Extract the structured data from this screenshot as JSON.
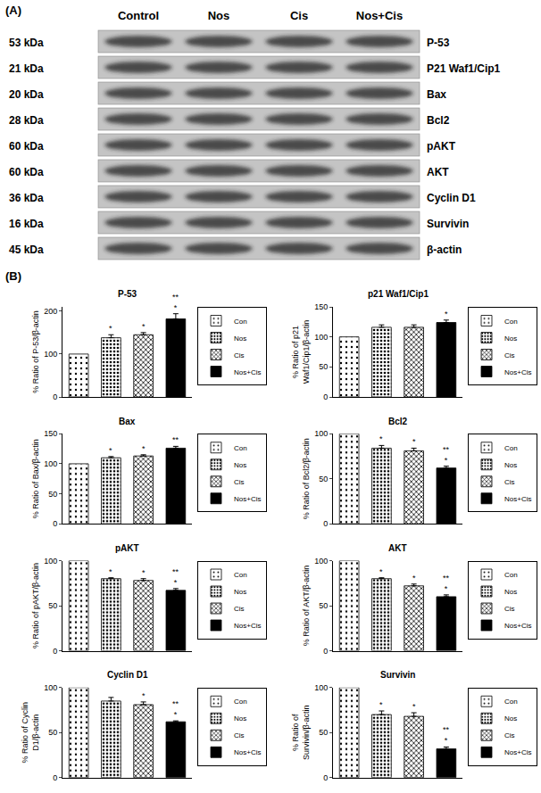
{
  "panel_a": {
    "label": "(A)",
    "columns": [
      "Control",
      "Nos",
      "Cis",
      "Nos+Cis"
    ],
    "rows": [
      {
        "size": "53 kDa",
        "protein": "P-53"
      },
      {
        "size": "21 kDa",
        "protein": "P21 Waf1/Cip1"
      },
      {
        "size": "20 kDa",
        "protein": "Bax"
      },
      {
        "size": "28 kDa",
        "protein": "Bcl2"
      },
      {
        "size": "60 kDa",
        "protein": "pAKT"
      },
      {
        "size": "60 kDa",
        "protein": "AKT"
      },
      {
        "size": "36 kDa",
        "protein": "Cyclin D1"
      },
      {
        "size": "16 kDa",
        "protein": "Survivin"
      },
      {
        "size": "45 kDa",
        "protein": "β-actin"
      }
    ]
  },
  "panel_b": {
    "label": "(B)"
  },
  "chart_data": [
    {
      "type": "bar",
      "title": "P-53",
      "y_label": "% Ratio of P-53/β-actin",
      "categories": [
        "Con",
        "Nos",
        "Cis",
        "Nos+Cis"
      ],
      "values": [
        100,
        138,
        145,
        182
      ],
      "errors": [
        null,
        7,
        5,
        12
      ],
      "significance": [
        null,
        [
          "*"
        ],
        [
          "*"
        ],
        [
          "**",
          "*"
        ]
      ],
      "colors": [
        "#ffffff",
        "#ffffff",
        "#ffffff",
        "#000000"
      ],
      "ylim": [
        0,
        210
      ],
      "yticks": [
        0,
        100,
        200
      ],
      "legend": "right",
      "tick_labels": "y"
    },
    {
      "type": "bar",
      "title": "p21 Waf1/Cip1",
      "y_label": "% Ratio of p21\nWaf1/Cip1/β-actin",
      "categories": [
        "Con",
        "Nos",
        "Cis",
        "Nos+Cis"
      ],
      "values": [
        100,
        116,
        116,
        124
      ],
      "errors": [
        null,
        4,
        4,
        4
      ],
      "significance": [
        null,
        null,
        null,
        [
          "*"
        ]
      ],
      "colors": [
        "#ffffff",
        "#ffffff",
        "#ffffff",
        "#000000"
      ],
      "ylim": [
        0,
        150
      ],
      "yticks": [
        0,
        50,
        100,
        150
      ],
      "legend": "right",
      "tick_labels": "y"
    },
    {
      "type": "bar",
      "title": "Bax",
      "y_label": "% Ratio of Bax/β-actin",
      "categories": [
        "Con",
        "Nos",
        "Cis",
        "Nos+Cis"
      ],
      "values": [
        100,
        110,
        113,
        126
      ],
      "errors": [
        null,
        2,
        2,
        3
      ],
      "significance": [
        null,
        [
          "*"
        ],
        [
          "*"
        ],
        [
          "**"
        ]
      ],
      "colors": [
        "#ffffff",
        "#ffffff",
        "#ffffff",
        "#000000"
      ],
      "ylim": [
        0,
        150
      ],
      "yticks": [
        0,
        50,
        100,
        150
      ],
      "legend": "right",
      "tick_labels": "y"
    },
    {
      "type": "bar",
      "title": "Bcl2",
      "y_label": "% Ratio of Bcl2/β-actin",
      "categories": [
        "Con",
        "Nos",
        "Cis",
        "Nos+Cis"
      ],
      "values": [
        100,
        84,
        81,
        62
      ],
      "errors": [
        null,
        3,
        3,
        2
      ],
      "significance": [
        null,
        [
          "*"
        ],
        [
          "*"
        ],
        [
          "**",
          "*"
        ]
      ],
      "colors": [
        "#ffffff",
        "#ffffff",
        "#ffffff",
        "#000000"
      ],
      "ylim": [
        0,
        100
      ],
      "yticks": [
        0,
        50,
        100
      ],
      "legend": "right",
      "tick_labels": "y"
    },
    {
      "type": "bar",
      "title": "pAKT",
      "y_label": "% Ratio of pAKT/β-actin",
      "categories": [
        "Con",
        "Nos",
        "Cis",
        "Nos+Cis"
      ],
      "values": [
        100,
        80,
        78,
        67
      ],
      "errors": [
        null,
        1,
        2,
        2
      ],
      "significance": [
        null,
        [
          "*"
        ],
        [
          "*"
        ],
        [
          "**",
          "*"
        ]
      ],
      "colors": [
        "#ffffff",
        "#ffffff",
        "#ffffff",
        "#000000"
      ],
      "ylim": [
        0,
        100
      ],
      "yticks": [
        0,
        50,
        100
      ],
      "legend": "right",
      "tick_labels": "y"
    },
    {
      "type": "bar",
      "title": "AKT",
      "y_label": "% Ratio of AKT/β-actin",
      "categories": [
        "Con",
        "Nos",
        "Cis",
        "Nos+Cis"
      ],
      "values": [
        100,
        80,
        72,
        60
      ],
      "errors": [
        null,
        1,
        2,
        2
      ],
      "significance": [
        null,
        [
          "*"
        ],
        [
          "*"
        ],
        [
          "**",
          "*"
        ]
      ],
      "colors": [
        "#ffffff",
        "#ffffff",
        "#ffffff",
        "#000000"
      ],
      "ylim": [
        0,
        100
      ],
      "yticks": [
        0,
        50,
        100
      ],
      "legend": "right",
      "tick_labels": "y"
    },
    {
      "type": "bar",
      "title": "Cyclin D1",
      "y_label": "% Ratio of Cyclin\nD1/β-actin",
      "categories": [
        "Con",
        "Nos",
        "Cis",
        "Nos+Cis"
      ],
      "values": [
        100,
        85,
        81,
        62
      ],
      "errors": [
        null,
        4,
        3,
        1
      ],
      "significance": [
        null,
        null,
        [
          "*"
        ],
        [
          "**",
          "*"
        ]
      ],
      "colors": [
        "#ffffff",
        "#ffffff",
        "#ffffff",
        "#000000"
      ],
      "ylim": [
        0,
        100
      ],
      "yticks": [
        0,
        50,
        100
      ],
      "legend": "right",
      "tick_labels": "y"
    },
    {
      "type": "bar",
      "title": "Survivin",
      "y_label": "% Ratio of\nSurvivin/β-actin",
      "categories": [
        "Con",
        "Nos",
        "Cis",
        "Nos+Cis"
      ],
      "values": [
        100,
        70,
        68,
        32
      ],
      "errors": [
        null,
        4,
        4,
        2
      ],
      "significance": [
        null,
        [
          "*"
        ],
        [
          "*"
        ],
        [
          "**",
          "*"
        ]
      ],
      "colors": [
        "#ffffff",
        "#ffffff",
        "#ffffff",
        "#000000"
      ],
      "ylim": [
        0,
        100
      ],
      "yticks": [
        0,
        50,
        100
      ],
      "legend": "right",
      "tick_labels": "y"
    }
  ]
}
